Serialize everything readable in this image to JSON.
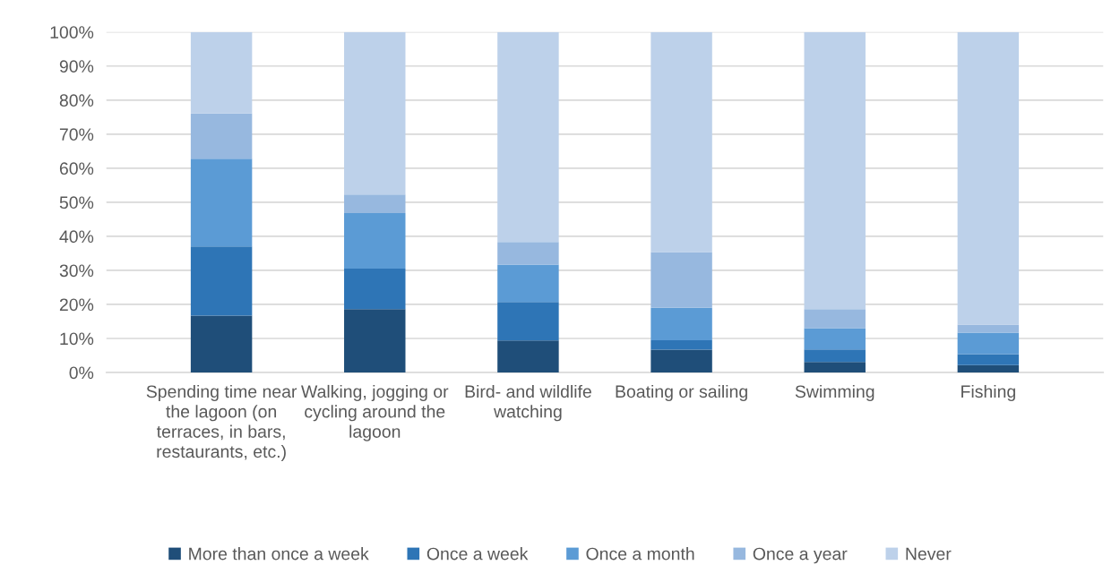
{
  "chart_data": {
    "type": "bar",
    "stacked": true,
    "categories": [
      "Spending time near the lagoon (on terraces, in bars, restaurants, etc.)",
      "Walking, jogging or cycling around the lagoon",
      "Bird- and wildlife watching",
      "Boating or sailing",
      "Swimming",
      "Fishing"
    ],
    "series": [
      {
        "name": "More than once a week",
        "color": "#1f4e79",
        "values": [
          16.7,
          18.6,
          9.4,
          6.7,
          3.1,
          2.2
        ]
      },
      {
        "name": "Once a week",
        "color": "#2e75b6",
        "values": [
          20.3,
          11.9,
          11.3,
          2.8,
          3.7,
          3.2
        ]
      },
      {
        "name": "Once a month",
        "color": "#5b9bd5",
        "values": [
          25.8,
          16.3,
          11.0,
          9.5,
          6.2,
          6.3
        ]
      },
      {
        "name": "Once a year",
        "color": "#97b8df",
        "values": [
          13.3,
          5.5,
          6.6,
          16.4,
          5.6,
          2.4
        ]
      },
      {
        "name": "Never",
        "color": "#bdd1ea",
        "values": [
          23.9,
          47.7,
          61.7,
          64.6,
          81.4,
          85.9
        ]
      }
    ],
    "ylim": [
      0,
      100
    ],
    "yticks": [
      {
        "value": 0,
        "label": "0%"
      },
      {
        "value": 10,
        "label": "10%"
      },
      {
        "value": 20,
        "label": "20%"
      },
      {
        "value": 30,
        "label": "30%"
      },
      {
        "value": 40,
        "label": "40%"
      },
      {
        "value": 50,
        "label": "50%"
      },
      {
        "value": 60,
        "label": "60%"
      },
      {
        "value": 70,
        "label": "70%"
      },
      {
        "value": 80,
        "label": "80%"
      },
      {
        "value": 90,
        "label": "90%"
      },
      {
        "value": 100,
        "label": "100%"
      }
    ],
    "grid": "y",
    "legend": "bottom"
  }
}
